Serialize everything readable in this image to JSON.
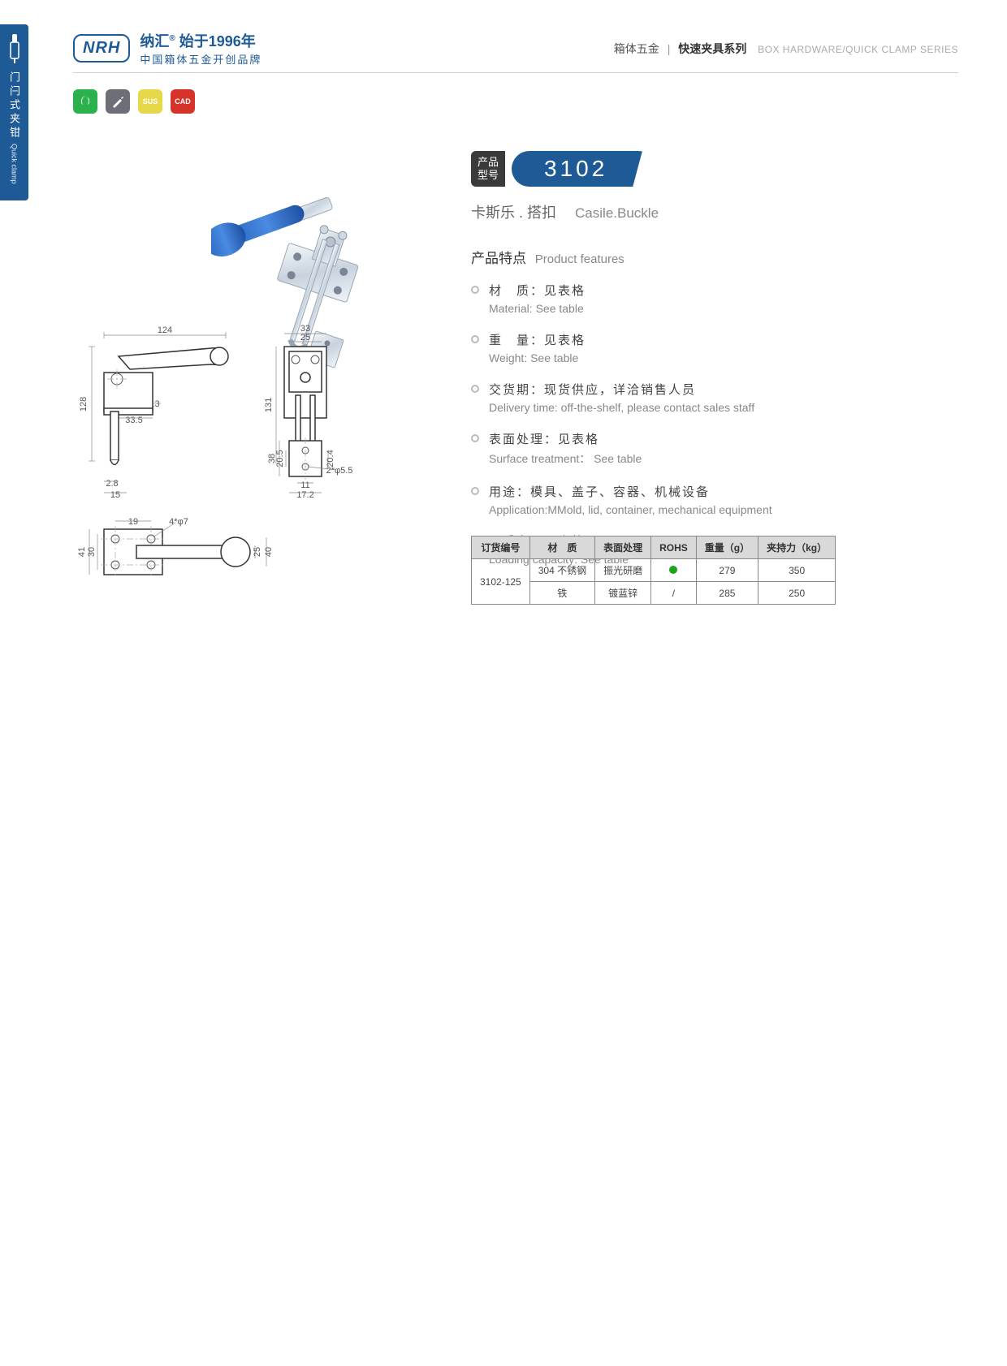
{
  "colors": {
    "brand_blue": "#1e5a96",
    "badge_green": "#2bb24c",
    "badge_gray": "#6e6e78",
    "badge_yellow": "#e7d84a",
    "badge_red": "#d6332a",
    "table_header_bg": "#d9d9d9",
    "rohs_green": "#1aa51a"
  },
  "side_tab": {
    "label_cn": "门闩式夹钳",
    "label_en": "Quick clamp"
  },
  "header": {
    "logo_badge": "NRH",
    "brand_cn": "纳汇",
    "since": "始于1996年",
    "slogan_cn": "中国箱体五金开创品牌",
    "right_cn1": "箱体五金",
    "right_cn2": "快速夹具系列",
    "right_en": "BOX HARDWARE/QUICK CLAMP SERIES"
  },
  "badges": [
    "eco",
    "tool",
    "SUS",
    "CAD"
  ],
  "model": {
    "label_l1": "产品",
    "label_l2": "型号",
    "number": "3102",
    "subtitle_cn": "卡斯乐 . 搭扣",
    "subtitle_en": "Casile.Buckle"
  },
  "features_header": {
    "cn": "产品特点",
    "en": "Product features"
  },
  "features": [
    {
      "cn": "材　质：见表格",
      "en": "Material: See table"
    },
    {
      "cn": "重　量：见表格",
      "en": "Weight: See table"
    },
    {
      "cn": "交货期：现货供应，详洽销售人员",
      "en": "Delivery time: off-the-shelf, please contact sales staff"
    },
    {
      "cn": "表面处理：见表格",
      "en": "Surface treatment： See table"
    },
    {
      "cn": "用途：模具、盖子、容器、机械设备",
      "en": "Application:MMold, lid, container, mechanical equipment"
    },
    {
      "cn": "承重力：见表格",
      "en": "Loading capacity: See table"
    }
  ],
  "spec_table": {
    "headers": [
      "订货编号",
      "材　质",
      "表面处理",
      "ROHS",
      "重量（g）",
      "夹持力（kg）"
    ],
    "order_no": "3102-125",
    "rows": [
      {
        "material": "304 不锈钢",
        "surface": "振光研磨",
        "rohs": "dot",
        "weight": "279",
        "force": "350"
      },
      {
        "material": "铁",
        "surface": "镀蓝锌",
        "rohs": "/",
        "weight": "285",
        "force": "250"
      }
    ]
  },
  "drawing_dims": {
    "front": {
      "width": "124",
      "height": "128",
      "base_slot": "33.5",
      "base_thk": ".3",
      "hole_off": "2.8",
      "hole_x": "15"
    },
    "side": {
      "outer_w": "33",
      "inner_w": "25",
      "height": "131",
      "catch_h": "38",
      "catch_in_h": "20.5",
      "catch_off": "11",
      "catch_w": "17.2",
      "catch_hole": "2*φ5.5",
      "catch_slot": "20.4"
    },
    "top": {
      "base_h": "41",
      "base_in_h": "30",
      "hole_off": "19",
      "holes": "4*φ7",
      "bar_h": "25",
      "total_h": "40"
    }
  }
}
